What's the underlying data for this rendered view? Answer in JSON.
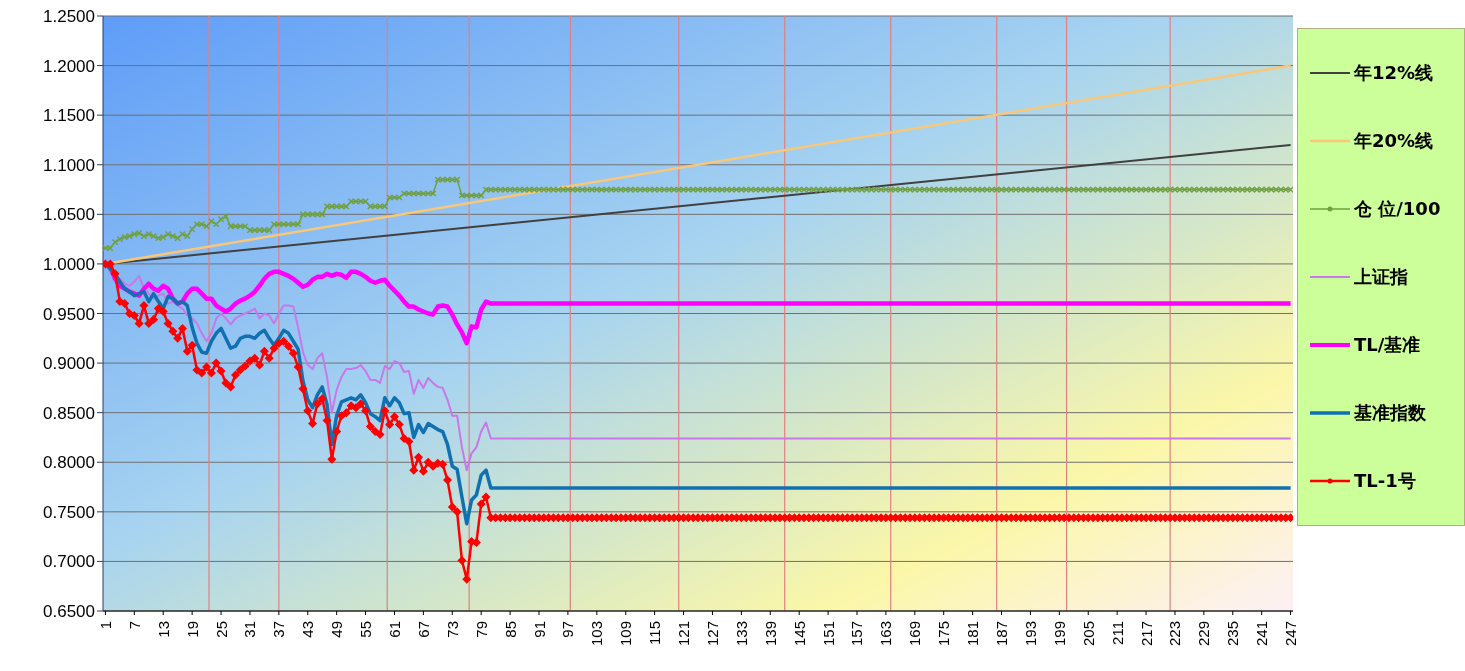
{
  "chart_data": {
    "type": "line",
    "xlim": [
      0.5,
      247.5
    ],
    "xticks": [
      1,
      7,
      13,
      19,
      25,
      31,
      37,
      43,
      49,
      55,
      61,
      67,
      73,
      79,
      85,
      91,
      97,
      103,
      109,
      115,
      121,
      127,
      133,
      139,
      145,
      151,
      157,
      163,
      169,
      175,
      181,
      187,
      193,
      199,
      205,
      211,
      217,
      223,
      229,
      235,
      241,
      247
    ],
    "ylim": [
      0.65,
      1.25
    ],
    "yticks": [
      {
        "value": 0.65,
        "label": "0.6500"
      },
      {
        "value": 0.7,
        "label": "0.7000"
      },
      {
        "value": 0.75,
        "label": "0.7500"
      },
      {
        "value": 0.8,
        "label": "0.8000"
      },
      {
        "value": 0.85,
        "label": "0.8500"
      },
      {
        "value": 0.9,
        "label": "0.9000"
      },
      {
        "value": 0.95,
        "label": "0.9500"
      },
      {
        "value": 1,
        "label": "1.0000"
      },
      {
        "value": 1.05,
        "label": "1.0500"
      },
      {
        "value": 1.1,
        "label": "1.1000"
      },
      {
        "value": 1.15,
        "label": "1.1500"
      },
      {
        "value": 1.2,
        "label": "1.2000"
      },
      {
        "value": 1.25,
        "label": "1.2500"
      }
    ],
    "grid": "y",
    "legend": "right",
    "line_style": "solid",
    "ref_lines": [
      {
        "axis": "x",
        "value": 22.5,
        "color": "#e08080"
      },
      {
        "axis": "x",
        "value": 37,
        "color": "#e08080"
      },
      {
        "axis": "x",
        "value": 59.5,
        "color": "#e08080"
      },
      {
        "axis": "x",
        "value": 76.5,
        "color": "#e08080"
      },
      {
        "axis": "x",
        "value": 97.5,
        "color": "#e08080"
      },
      {
        "axis": "x",
        "value": 120,
        "color": "#e08080"
      },
      {
        "axis": "x",
        "value": 142,
        "color": "#e08080"
      },
      {
        "axis": "x",
        "value": 164,
        "color": "#e08080"
      },
      {
        "axis": "x",
        "value": 186,
        "color": "#e08080"
      },
      {
        "axis": "x",
        "value": 200.5,
        "color": "#e08080"
      },
      {
        "axis": "x",
        "value": 222,
        "color": "#e08080"
      }
    ],
    "series": [
      {
        "name": "年12%线",
        "color": "#404040",
        "marker": "none",
        "x": [
          1,
          247
        ],
        "values": [
          1.0,
          1.12
        ]
      },
      {
        "name": "年20%线",
        "color": "#f8c878",
        "marker": "none",
        "x": [
          1,
          247
        ],
        "values": [
          1.0,
          1.2
        ]
      },
      {
        "name": "仓 位/100",
        "color": "#70a040",
        "marker": "cross",
        "x": [
          1,
          2,
          3,
          4,
          5,
          6,
          7,
          8,
          9,
          10,
          11,
          12,
          13,
          14,
          15,
          16,
          17,
          18,
          19,
          20,
          21,
          22,
          23,
          24,
          25,
          26,
          27,
          28,
          29,
          30,
          31,
          32,
          33,
          34,
          35,
          36,
          37,
          38,
          39,
          40,
          41,
          42,
          43,
          44,
          45,
          46,
          47,
          48,
          49,
          50,
          51,
          52,
          53,
          54,
          55,
          56,
          57,
          58,
          59,
          60,
          61,
          62,
          63,
          64,
          65,
          66,
          67,
          68,
          69,
          70,
          71,
          72,
          73,
          74,
          75,
          76,
          77,
          78,
          79,
          80,
          81,
          82,
          83,
          84,
          85,
          86,
          87,
          88,
          89,
          90,
          91,
          92,
          93,
          94,
          95,
          96,
          97,
          98,
          99,
          100,
          101,
          102,
          103,
          104,
          105,
          106,
          107,
          108,
          109,
          110,
          111,
          112,
          113,
          114,
          115,
          116,
          117,
          118,
          119,
          120,
          121,
          122,
          123,
          124,
          125,
          126,
          127,
          128,
          129,
          130,
          131,
          132,
          133,
          134,
          135,
          136,
          137,
          138,
          139,
          140,
          141,
          142,
          143,
          144,
          145,
          146,
          147,
          148,
          149,
          150,
          151,
          152,
          153,
          154,
          155,
          156,
          157,
          158,
          159,
          160,
          161,
          162,
          163,
          164,
          165,
          166,
          167,
          168,
          169,
          170,
          171,
          172,
          173,
          174,
          175,
          176,
          177,
          178,
          179,
          180,
          181,
          182,
          183,
          184,
          185,
          186,
          187,
          188,
          189,
          190,
          191,
          192,
          193,
          194,
          195,
          196,
          197,
          198,
          199,
          200,
          201,
          202,
          203,
          204,
          205,
          206,
          207,
          208,
          209,
          210,
          211,
          212,
          213,
          214,
          215,
          216,
          217,
          218,
          219,
          220,
          221,
          222,
          223,
          224,
          225,
          226,
          227,
          228,
          229,
          230,
          231,
          232,
          233,
          234,
          235,
          236,
          237,
          238,
          239,
          240,
          241,
          242,
          243,
          244,
          245,
          246,
          247
        ],
        "values": [
          1.016,
          1.016,
          1.022,
          1.025,
          1.027,
          1.028,
          1.03,
          1.031,
          1.028,
          1.03,
          1.028,
          1.026,
          1.027,
          1.03,
          1.028,
          1.026,
          1.03,
          1.028,
          1.035,
          1.04,
          1.04,
          1.038,
          1.043,
          1.04,
          1.045,
          1.048,
          1.038,
          1.038,
          1.038,
          1.038,
          1.034,
          1.034,
          1.034,
          1.034,
          1.034,
          1.04,
          1.04,
          1.04,
          1.04,
          1.04,
          1.04,
          1.05,
          1.05,
          1.05,
          1.05,
          1.05,
          1.058,
          1.058,
          1.058,
          1.058,
          1.058,
          1.063,
          1.063,
          1.063,
          1.063,
          1.058,
          1.058,
          1.058,
          1.058,
          1.067,
          1.067,
          1.067,
          1.071,
          1.071,
          1.071,
          1.071,
          1.071,
          1.071,
          1.071,
          1.085,
          1.085,
          1.085,
          1.085,
          1.085,
          1.069,
          1.069,
          1.069,
          1.069,
          1.069,
          1.075,
          1.075,
          1.075,
          1.075,
          1.075,
          1.075,
          1.075,
          1.075,
          1.075,
          1.075,
          1.075,
          1.075,
          1.075,
          1.075,
          1.075,
          1.075,
          1.075,
          1.075,
          1.075,
          1.075,
          1.075,
          1.075,
          1.075,
          1.075,
          1.075,
          1.075,
          1.075,
          1.075,
          1.075,
          1.075,
          1.075,
          1.075,
          1.075,
          1.075,
          1.075,
          1.075,
          1.075,
          1.075,
          1.075,
          1.075,
          1.075,
          1.075,
          1.075,
          1.075,
          1.075,
          1.075,
          1.075,
          1.075,
          1.075,
          1.075,
          1.075,
          1.075,
          1.075,
          1.075,
          1.075,
          1.075,
          1.075,
          1.075,
          1.075,
          1.075,
          1.075,
          1.075,
          1.075,
          1.075,
          1.075,
          1.075,
          1.075,
          1.075,
          1.075,
          1.075,
          1.075,
          1.075,
          1.075,
          1.075,
          1.075,
          1.075,
          1.075,
          1.075,
          1.075,
          1.075,
          1.075,
          1.075,
          1.075,
          1.075,
          1.075,
          1.075,
          1.075,
          1.075,
          1.075,
          1.075,
          1.075,
          1.075,
          1.075,
          1.075,
          1.075,
          1.075,
          1.075,
          1.075,
          1.075,
          1.075,
          1.075,
          1.075,
          1.075,
          1.075,
          1.075,
          1.075,
          1.075,
          1.075,
          1.075,
          1.075,
          1.075,
          1.075,
          1.075,
          1.075,
          1.075,
          1.075,
          1.075,
          1.075,
          1.075,
          1.075,
          1.075,
          1.075,
          1.075,
          1.075,
          1.075,
          1.075,
          1.075,
          1.075,
          1.075,
          1.075,
          1.075,
          1.075,
          1.075,
          1.075,
          1.075,
          1.075,
          1.075,
          1.075,
          1.075,
          1.075,
          1.075,
          1.075,
          1.075,
          1.075,
          1.075,
          1.075,
          1.075,
          1.075,
          1.075,
          1.075,
          1.075,
          1.075,
          1.075,
          1.075,
          1.075,
          1.075,
          1.075,
          1.075,
          1.075,
          1.075,
          1.075,
          1.075,
          1.075,
          1.075,
          1.075,
          1.075,
          1.075,
          1.075
        ]
      },
      {
        "name": "上证指",
        "color": "#c878e8",
        "marker": "none",
        "x": [
          1,
          2,
          3,
          4,
          5,
          6,
          7,
          8,
          9,
          10,
          11,
          12,
          13,
          14,
          15,
          16,
          17,
          18,
          19,
          20,
          21,
          22,
          23,
          24,
          25,
          26,
          27,
          28,
          29,
          30,
          31,
          32,
          33,
          34,
          35,
          36,
          37,
          38,
          39,
          40,
          41,
          42,
          43,
          44,
          45,
          46,
          47,
          48,
          49,
          50,
          51,
          52,
          53,
          54,
          55,
          56,
          57,
          58,
          59,
          60,
          61,
          62,
          63,
          64,
          65,
          66,
          67,
          68,
          69,
          70,
          71,
          72,
          73,
          74,
          75,
          76,
          77,
          78,
          79,
          80,
          81,
          247
        ],
        "values": [
          1.0,
          0.992,
          0.985,
          0.985,
          0.98,
          0.978,
          0.982,
          0.988,
          0.975,
          0.97,
          0.965,
          0.968,
          0.97,
          0.96,
          0.962,
          0.958,
          0.955,
          0.948,
          0.945,
          0.94,
          0.93,
          0.922,
          0.93,
          0.945,
          0.95,
          0.945,
          0.939,
          0.945,
          0.948,
          0.95,
          0.952,
          0.955,
          0.945,
          0.95,
          0.948,
          0.94,
          0.95,
          0.958,
          0.958,
          0.957,
          0.936,
          0.911,
          0.898,
          0.894,
          0.905,
          0.91,
          0.886,
          0.85,
          0.873,
          0.886,
          0.894,
          0.894,
          0.895,
          0.898,
          0.892,
          0.883,
          0.883,
          0.88,
          0.897,
          0.894,
          0.902,
          0.9,
          0.891,
          0.892,
          0.869,
          0.883,
          0.875,
          0.885,
          0.88,
          0.876,
          0.875,
          0.863,
          0.847,
          0.847,
          0.815,
          0.792,
          0.809,
          0.815,
          0.831,
          0.84,
          0.824,
          0.824
        ]
      },
      {
        "name": "TL/基准",
        "color": "#ff00ff",
        "marker": "none",
        "x": [
          1,
          2,
          3,
          4,
          5,
          6,
          7,
          8,
          9,
          10,
          11,
          12,
          13,
          14,
          15,
          16,
          17,
          18,
          19,
          20,
          21,
          22,
          23,
          24,
          25,
          26,
          27,
          28,
          29,
          30,
          31,
          32,
          33,
          34,
          35,
          36,
          37,
          38,
          39,
          40,
          41,
          42,
          43,
          44,
          45,
          46,
          47,
          48,
          49,
          50,
          51,
          52,
          53,
          54,
          55,
          56,
          57,
          58,
          59,
          60,
          61,
          62,
          63,
          64,
          65,
          66,
          67,
          68,
          69,
          70,
          71,
          72,
          73,
          74,
          75,
          76,
          77,
          78,
          79,
          80,
          81,
          247
        ],
        "values": [
          1.0,
          0.998,
          0.985,
          0.978,
          0.975,
          0.972,
          0.97,
          0.968,
          0.975,
          0.98,
          0.975,
          0.973,
          0.978,
          0.975,
          0.965,
          0.96,
          0.962,
          0.97,
          0.975,
          0.975,
          0.97,
          0.965,
          0.965,
          0.958,
          0.955,
          0.952,
          0.955,
          0.96,
          0.963,
          0.965,
          0.968,
          0.972,
          0.978,
          0.985,
          0.99,
          0.992,
          0.992,
          0.99,
          0.988,
          0.985,
          0.981,
          0.977,
          0.979,
          0.984,
          0.987,
          0.987,
          0.99,
          0.988,
          0.99,
          0.989,
          0.986,
          0.992,
          0.992,
          0.99,
          0.987,
          0.983,
          0.981,
          0.983,
          0.984,
          0.978,
          0.973,
          0.968,
          0.962,
          0.957,
          0.957,
          0.954,
          0.952,
          0.95,
          0.949,
          0.957,
          0.958,
          0.957,
          0.949,
          0.939,
          0.931,
          0.92,
          0.937,
          0.936,
          0.954,
          0.962,
          0.96,
          0.96
        ]
      },
      {
        "name": "基准指数",
        "color": "#1070b0",
        "marker": "none",
        "x": [
          1,
          2,
          3,
          4,
          5,
          6,
          7,
          8,
          9,
          10,
          11,
          12,
          13,
          14,
          15,
          16,
          17,
          18,
          19,
          20,
          21,
          22,
          23,
          24,
          25,
          26,
          27,
          28,
          29,
          30,
          31,
          32,
          33,
          34,
          35,
          36,
          37,
          38,
          39,
          40,
          41,
          42,
          43,
          44,
          45,
          46,
          47,
          48,
          49,
          50,
          51,
          52,
          53,
          54,
          55,
          56,
          57,
          58,
          59,
          60,
          61,
          62,
          63,
          64,
          65,
          66,
          67,
          68,
          69,
          70,
          71,
          72,
          73,
          74,
          75,
          76,
          77,
          78,
          79,
          80,
          81,
          247
        ],
        "values": [
          1.0,
          0.995,
          0.99,
          0.982,
          0.975,
          0.972,
          0.968,
          0.97,
          0.972,
          0.962,
          0.97,
          0.962,
          0.955,
          0.967,
          0.965,
          0.96,
          0.962,
          0.958,
          0.936,
          0.92,
          0.911,
          0.91,
          0.922,
          0.93,
          0.935,
          0.925,
          0.915,
          0.917,
          0.925,
          0.927,
          0.927,
          0.925,
          0.93,
          0.933,
          0.925,
          0.918,
          0.925,
          0.933,
          0.93,
          0.922,
          0.914,
          0.882,
          0.863,
          0.855,
          0.868,
          0.876,
          0.858,
          0.818,
          0.847,
          0.861,
          0.863,
          0.865,
          0.863,
          0.868,
          0.86,
          0.849,
          0.846,
          0.842,
          0.865,
          0.857,
          0.865,
          0.86,
          0.849,
          0.85,
          0.825,
          0.838,
          0.83,
          0.839,
          0.836,
          0.833,
          0.831,
          0.818,
          0.796,
          0.793,
          0.765,
          0.738,
          0.762,
          0.767,
          0.787,
          0.792,
          0.774,
          0.774
        ]
      },
      {
        "name": "TL-1号",
        "color": "#ff0000",
        "marker": "diamond",
        "x": [
          1,
          2,
          3,
          4,
          5,
          6,
          7,
          8,
          9,
          10,
          11,
          12,
          13,
          14,
          15,
          16,
          17,
          18,
          19,
          20,
          21,
          22,
          23,
          24,
          25,
          26,
          27,
          28,
          29,
          30,
          31,
          32,
          33,
          34,
          35,
          36,
          37,
          38,
          39,
          40,
          41,
          42,
          43,
          44,
          45,
          46,
          47,
          48,
          49,
          50,
          51,
          52,
          53,
          54,
          55,
          56,
          57,
          58,
          59,
          60,
          61,
          62,
          63,
          64,
          65,
          66,
          67,
          68,
          69,
          70,
          71,
          72,
          73,
          74,
          75,
          76,
          77,
          78,
          79,
          80,
          81,
          82,
          83,
          84,
          85,
          86,
          87,
          88,
          89,
          90,
          91,
          92,
          93,
          94,
          95,
          96,
          97,
          98,
          99,
          100,
          101,
          102,
          103,
          104,
          105,
          106,
          107,
          108,
          109,
          110,
          111,
          112,
          113,
          114,
          115,
          116,
          117,
          118,
          119,
          120,
          121,
          122,
          123,
          124,
          125,
          126,
          127,
          128,
          129,
          130,
          131,
          132,
          133,
          134,
          135,
          136,
          137,
          138,
          139,
          140,
          141,
          142,
          143,
          144,
          145,
          146,
          147,
          148,
          149,
          150,
          151,
          152,
          153,
          154,
          155,
          156,
          157,
          158,
          159,
          160,
          161,
          162,
          163,
          164,
          165,
          166,
          167,
          168,
          169,
          170,
          171,
          172,
          173,
          174,
          175,
          176,
          177,
          178,
          179,
          180,
          181,
          182,
          183,
          184,
          185,
          186,
          187,
          188,
          189,
          190,
          191,
          192,
          193,
          194,
          195,
          196,
          197,
          198,
          199,
          200,
          201,
          202,
          203,
          204,
          205,
          206,
          207,
          208,
          209,
          210,
          211,
          212,
          213,
          214,
          215,
          216,
          217,
          218,
          219,
          220,
          221,
          222,
          223,
          224,
          225,
          226,
          227,
          228,
          229,
          230,
          231,
          232,
          233,
          234,
          235,
          236,
          237,
          238,
          239,
          240,
          241,
          242,
          243,
          244,
          245,
          246,
          247
        ],
        "values": [
          1.0,
          1.0,
          0.99,
          0.962,
          0.96,
          0.95,
          0.948,
          0.94,
          0.958,
          0.94,
          0.944,
          0.955,
          0.952,
          0.94,
          0.932,
          0.925,
          0.935,
          0.912,
          0.918,
          0.893,
          0.89,
          0.896,
          0.89,
          0.9,
          0.892,
          0.88,
          0.876,
          0.888,
          0.893,
          0.897,
          0.902,
          0.905,
          0.898,
          0.912,
          0.905,
          0.915,
          0.92,
          0.922,
          0.917,
          0.91,
          0.896,
          0.874,
          0.852,
          0.839,
          0.859,
          0.864,
          0.842,
          0.803,
          0.831,
          0.847,
          0.85,
          0.857,
          0.855,
          0.859,
          0.852,
          0.836,
          0.831,
          0.828,
          0.852,
          0.838,
          0.846,
          0.838,
          0.824,
          0.821,
          0.792,
          0.805,
          0.791,
          0.8,
          0.796,
          0.799,
          0.798,
          0.782,
          0.755,
          0.75,
          0.701,
          0.682,
          0.72,
          0.719,
          0.758,
          0.765,
          0.744,
          0.744,
          0.744,
          0.744,
          0.744,
          0.744,
          0.744,
          0.744,
          0.744,
          0.744,
          0.744,
          0.744,
          0.744,
          0.744,
          0.744,
          0.744,
          0.744,
          0.744,
          0.744,
          0.744,
          0.744,
          0.744,
          0.744,
          0.744,
          0.744,
          0.744,
          0.744,
          0.744,
          0.744,
          0.744,
          0.744,
          0.744,
          0.744,
          0.744,
          0.744,
          0.744,
          0.744,
          0.744,
          0.744,
          0.744,
          0.744,
          0.744,
          0.744,
          0.744,
          0.744,
          0.744,
          0.744,
          0.744,
          0.744,
          0.744,
          0.744,
          0.744,
          0.744,
          0.744,
          0.744,
          0.744,
          0.744,
          0.744,
          0.744,
          0.744,
          0.744,
          0.744,
          0.744,
          0.744,
          0.744,
          0.744,
          0.744,
          0.744,
          0.744,
          0.744,
          0.744,
          0.744,
          0.744,
          0.744,
          0.744,
          0.744,
          0.744,
          0.744,
          0.744,
          0.744,
          0.744,
          0.744,
          0.744,
          0.744,
          0.744,
          0.744,
          0.744,
          0.744,
          0.744,
          0.744,
          0.744,
          0.744,
          0.744,
          0.744,
          0.744,
          0.744,
          0.744,
          0.744,
          0.744,
          0.744,
          0.744,
          0.744,
          0.744,
          0.744,
          0.744,
          0.744,
          0.744,
          0.744,
          0.744,
          0.744,
          0.744,
          0.744,
          0.744,
          0.744,
          0.744,
          0.744,
          0.744,
          0.744,
          0.744,
          0.744,
          0.744,
          0.744,
          0.744,
          0.744,
          0.744,
          0.744,
          0.744,
          0.744,
          0.744,
          0.744,
          0.744,
          0.744,
          0.744,
          0.744,
          0.744,
          0.744,
          0.744,
          0.744,
          0.744,
          0.744,
          0.744,
          0.744,
          0.744,
          0.744,
          0.744,
          0.744,
          0.744,
          0.744,
          0.744,
          0.744,
          0.744,
          0.744,
          0.744,
          0.744,
          0.744,
          0.744,
          0.744,
          0.744,
          0.744,
          0.744,
          0.744,
          0.744,
          0.744,
          0.744,
          0.744,
          0.744,
          0.744
        ]
      }
    ]
  }
}
